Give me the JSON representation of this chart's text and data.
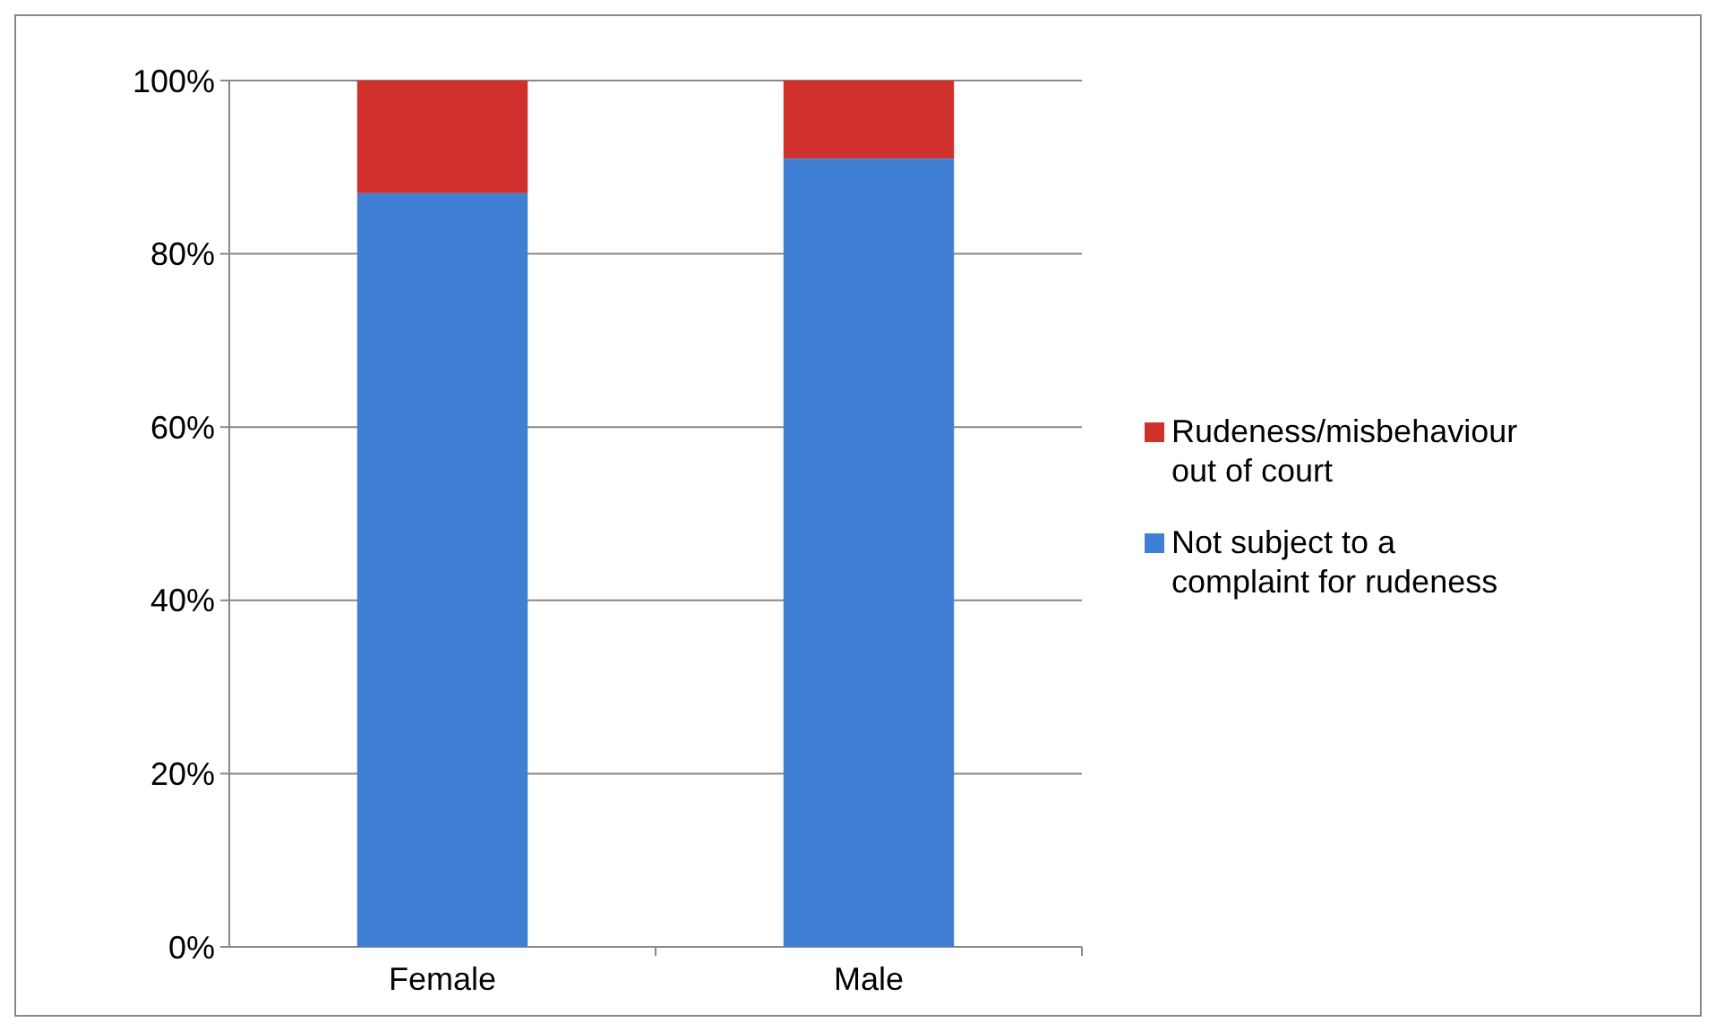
{
  "chart_data": {
    "type": "bar",
    "stacked": true,
    "categories": [
      "Female",
      "Male"
    ],
    "series": [
      {
        "name": "Not subject to a complaint for rudeness",
        "color": "#3f7fd4",
        "values": [
          87,
          91
        ]
      },
      {
        "name": "Rudeness/misbehaviour out of court",
        "color": "#d0312d",
        "values": [
          13,
          9
        ]
      }
    ],
    "ylim": [
      0,
      100
    ],
    "yticks": [
      {
        "value": 0,
        "label": "0%"
      },
      {
        "value": 20,
        "label": "20%"
      },
      {
        "value": 40,
        "label": "40%"
      },
      {
        "value": 60,
        "label": "60%"
      },
      {
        "value": 80,
        "label": "80%"
      },
      {
        "value": 100,
        "label": "100%"
      }
    ],
    "grid": "y",
    "legend": "right"
  }
}
